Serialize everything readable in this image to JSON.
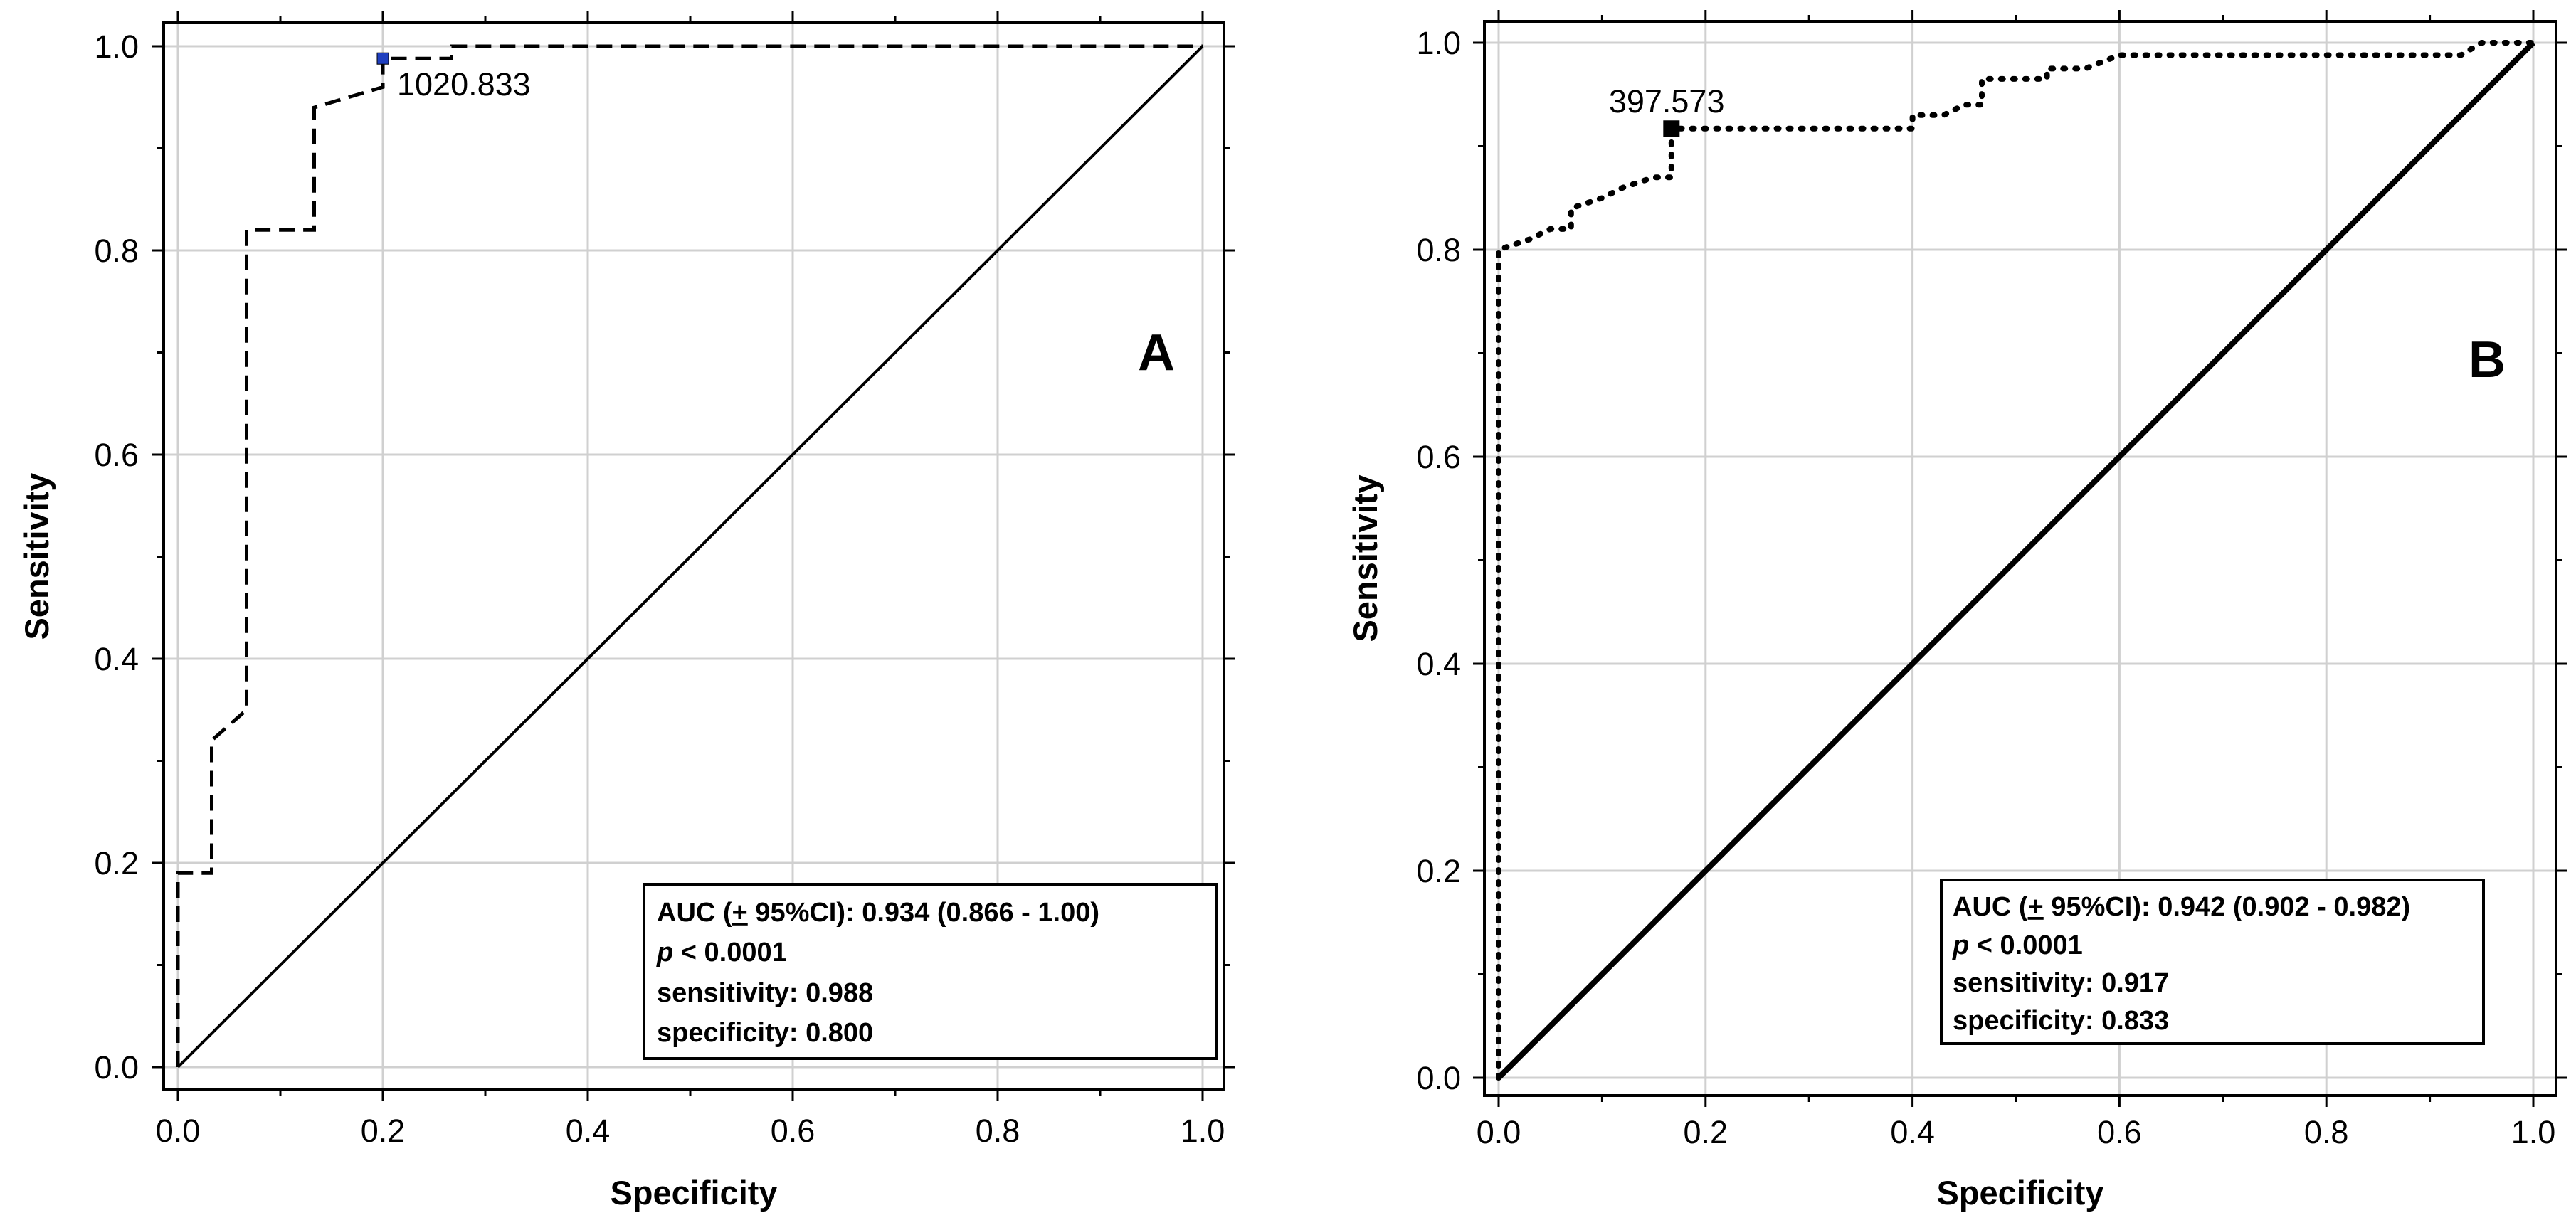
{
  "chart_data": [
    {
      "type": "line",
      "panel_label": "A",
      "xlabel": "Specificity",
      "ylabel": "Sensitivity",
      "xlim": [
        0,
        1
      ],
      "ylim": [
        0,
        1
      ],
      "xticks": [
        "0.0",
        "0.2",
        "0.4",
        "0.6",
        "0.8",
        "1.0"
      ],
      "yticks": [
        "0.0",
        "0.2",
        "0.4",
        "0.6",
        "0.8",
        "1.0"
      ],
      "grid": true,
      "series": [
        {
          "name": "ROC curve",
          "style": "dashed",
          "points": [
            [
              0,
              0
            ],
            [
              0,
              0.19
            ],
            [
              0.033,
              0.19
            ],
            [
              0.033,
              0.32
            ],
            [
              0.067,
              0.35
            ],
            [
              0.067,
              0.82
            ],
            [
              0.133,
              0.82
            ],
            [
              0.133,
              0.94
            ],
            [
              0.2,
              0.96
            ],
            [
              0.2,
              0.988
            ],
            [
              0.267,
              0.988
            ],
            [
              0.267,
              1
            ],
            [
              1,
              1
            ]
          ]
        },
        {
          "name": "reference line",
          "style": "solid",
          "points": [
            [
              0,
              0
            ],
            [
              1,
              1
            ]
          ]
        }
      ],
      "cutoff": {
        "x": 0.2,
        "y": 0.988,
        "label": "1020.833",
        "marker_color": "#1f3fbf"
      },
      "stats": {
        "auc_prefix": "AUC (",
        "auc_pm": "+",
        "auc_suffix": " 95%CI): 0.934 (0.866 - 1.00)",
        "p_symbol": "p",
        "p_text": " < 0.0001",
        "sensitivity": "sensitivity: 0.988",
        "specificity": "specificity: 0.800"
      }
    },
    {
      "type": "line",
      "panel_label": "B",
      "xlabel": "Specificity",
      "ylabel": "Sensitivity",
      "xlim": [
        0,
        1
      ],
      "ylim": [
        0,
        1
      ],
      "xticks": [
        "0.0",
        "0.2",
        "0.4",
        "0.6",
        "0.8",
        "1.0"
      ],
      "yticks": [
        "0.0",
        "0.2",
        "0.4",
        "0.6",
        "0.8",
        "1.0"
      ],
      "grid": true,
      "series": [
        {
          "name": "ROC curve",
          "style": "dotted",
          "points": [
            [
              0,
              0
            ],
            [
              0,
              0.8
            ],
            [
              0.03,
              0.81
            ],
            [
              0.05,
              0.82
            ],
            [
              0.07,
              0.82
            ],
            [
              0.07,
              0.84
            ],
            [
              0.1,
              0.85
            ],
            [
              0.12,
              0.86
            ],
            [
              0.15,
              0.87
            ],
            [
              0.167,
              0.87
            ],
            [
              0.167,
              0.917
            ],
            [
              0.4,
              0.917
            ],
            [
              0.4,
              0.93
            ],
            [
              0.43,
              0.93
            ],
            [
              0.45,
              0.94
            ],
            [
              0.467,
              0.94
            ],
            [
              0.467,
              0.965
            ],
            [
              0.53,
              0.965
            ],
            [
              0.53,
              0.975
            ],
            [
              0.567,
              0.975
            ],
            [
              0.6,
              0.988
            ],
            [
              0.93,
              0.988
            ],
            [
              0.95,
              1
            ],
            [
              1,
              1
            ]
          ]
        },
        {
          "name": "reference line",
          "style": "solid",
          "points": [
            [
              0,
              0
            ],
            [
              1,
              1
            ]
          ]
        }
      ],
      "cutoff": {
        "x": 0.167,
        "y": 0.917,
        "label": "397.573",
        "marker_color": "#000000"
      },
      "stats": {
        "auc_prefix": "AUC (",
        "auc_pm": "+",
        "auc_suffix": " 95%CI): 0.942 (0.902 - 0.982)",
        "p_symbol": "p",
        "p_text": " < 0.0001",
        "sensitivity": "sensitivity: 0.917",
        "specificity": "specificity: 0.833"
      }
    }
  ]
}
